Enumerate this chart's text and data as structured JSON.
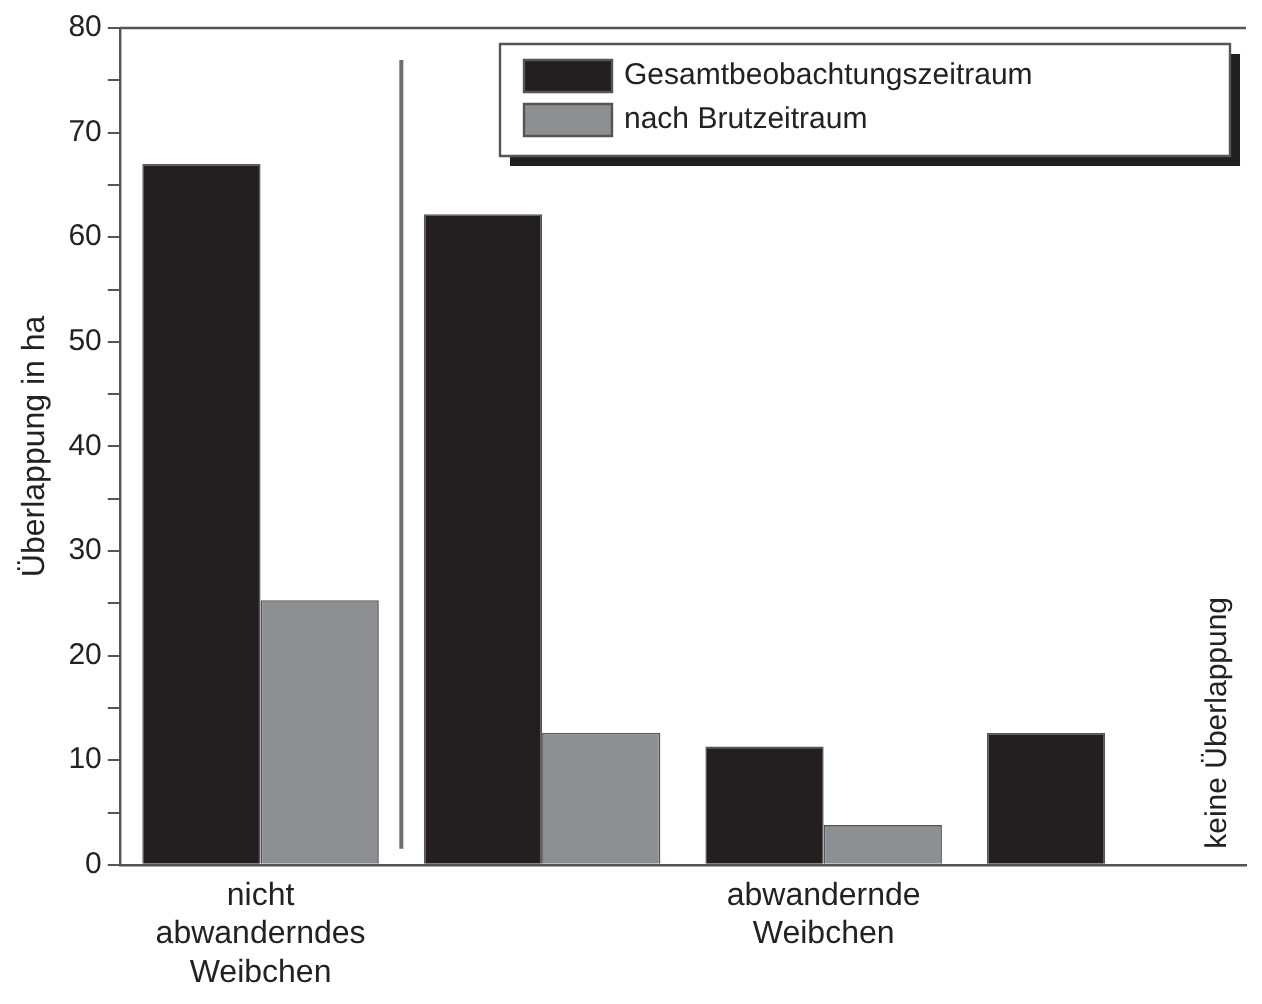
{
  "chart_data": {
    "type": "bar",
    "ylabel": "Überlappung in ha",
    "categories": [
      "nicht abwanderndes Weibchen",
      null,
      "abwandernde Weibchen",
      null
    ],
    "series": [
      {
        "name": "Gesamtbeobachtungszeitraum",
        "color": "#231f20",
        "values": [
          67,
          62.2,
          11.3,
          12.6
        ]
      },
      {
        "name": "nach Brutzeitraum",
        "color": "#8e8f92",
        "values": [
          25.3,
          12.6,
          3.8,
          null
        ]
      }
    ],
    "ylim": [
      0,
      80
    ],
    "yticks": [
      0,
      {
        "value": 5,
        "label": null
      },
      10,
      {
        "value": 15,
        "label": null
      },
      20,
      {
        "value": 25,
        "label": null
      },
      30,
      {
        "value": 35,
        "label": null
      },
      40,
      {
        "value": 45,
        "label": null
      },
      50,
      {
        "value": 55,
        "label": null
      },
      60,
      {
        "value": 65,
        "label": null
      },
      70,
      {
        "value": 75,
        "label": null
      },
      80
    ],
    "annotations": [
      "keine Überlappung"
    ],
    "legend": "top right",
    "grid": false
  }
}
